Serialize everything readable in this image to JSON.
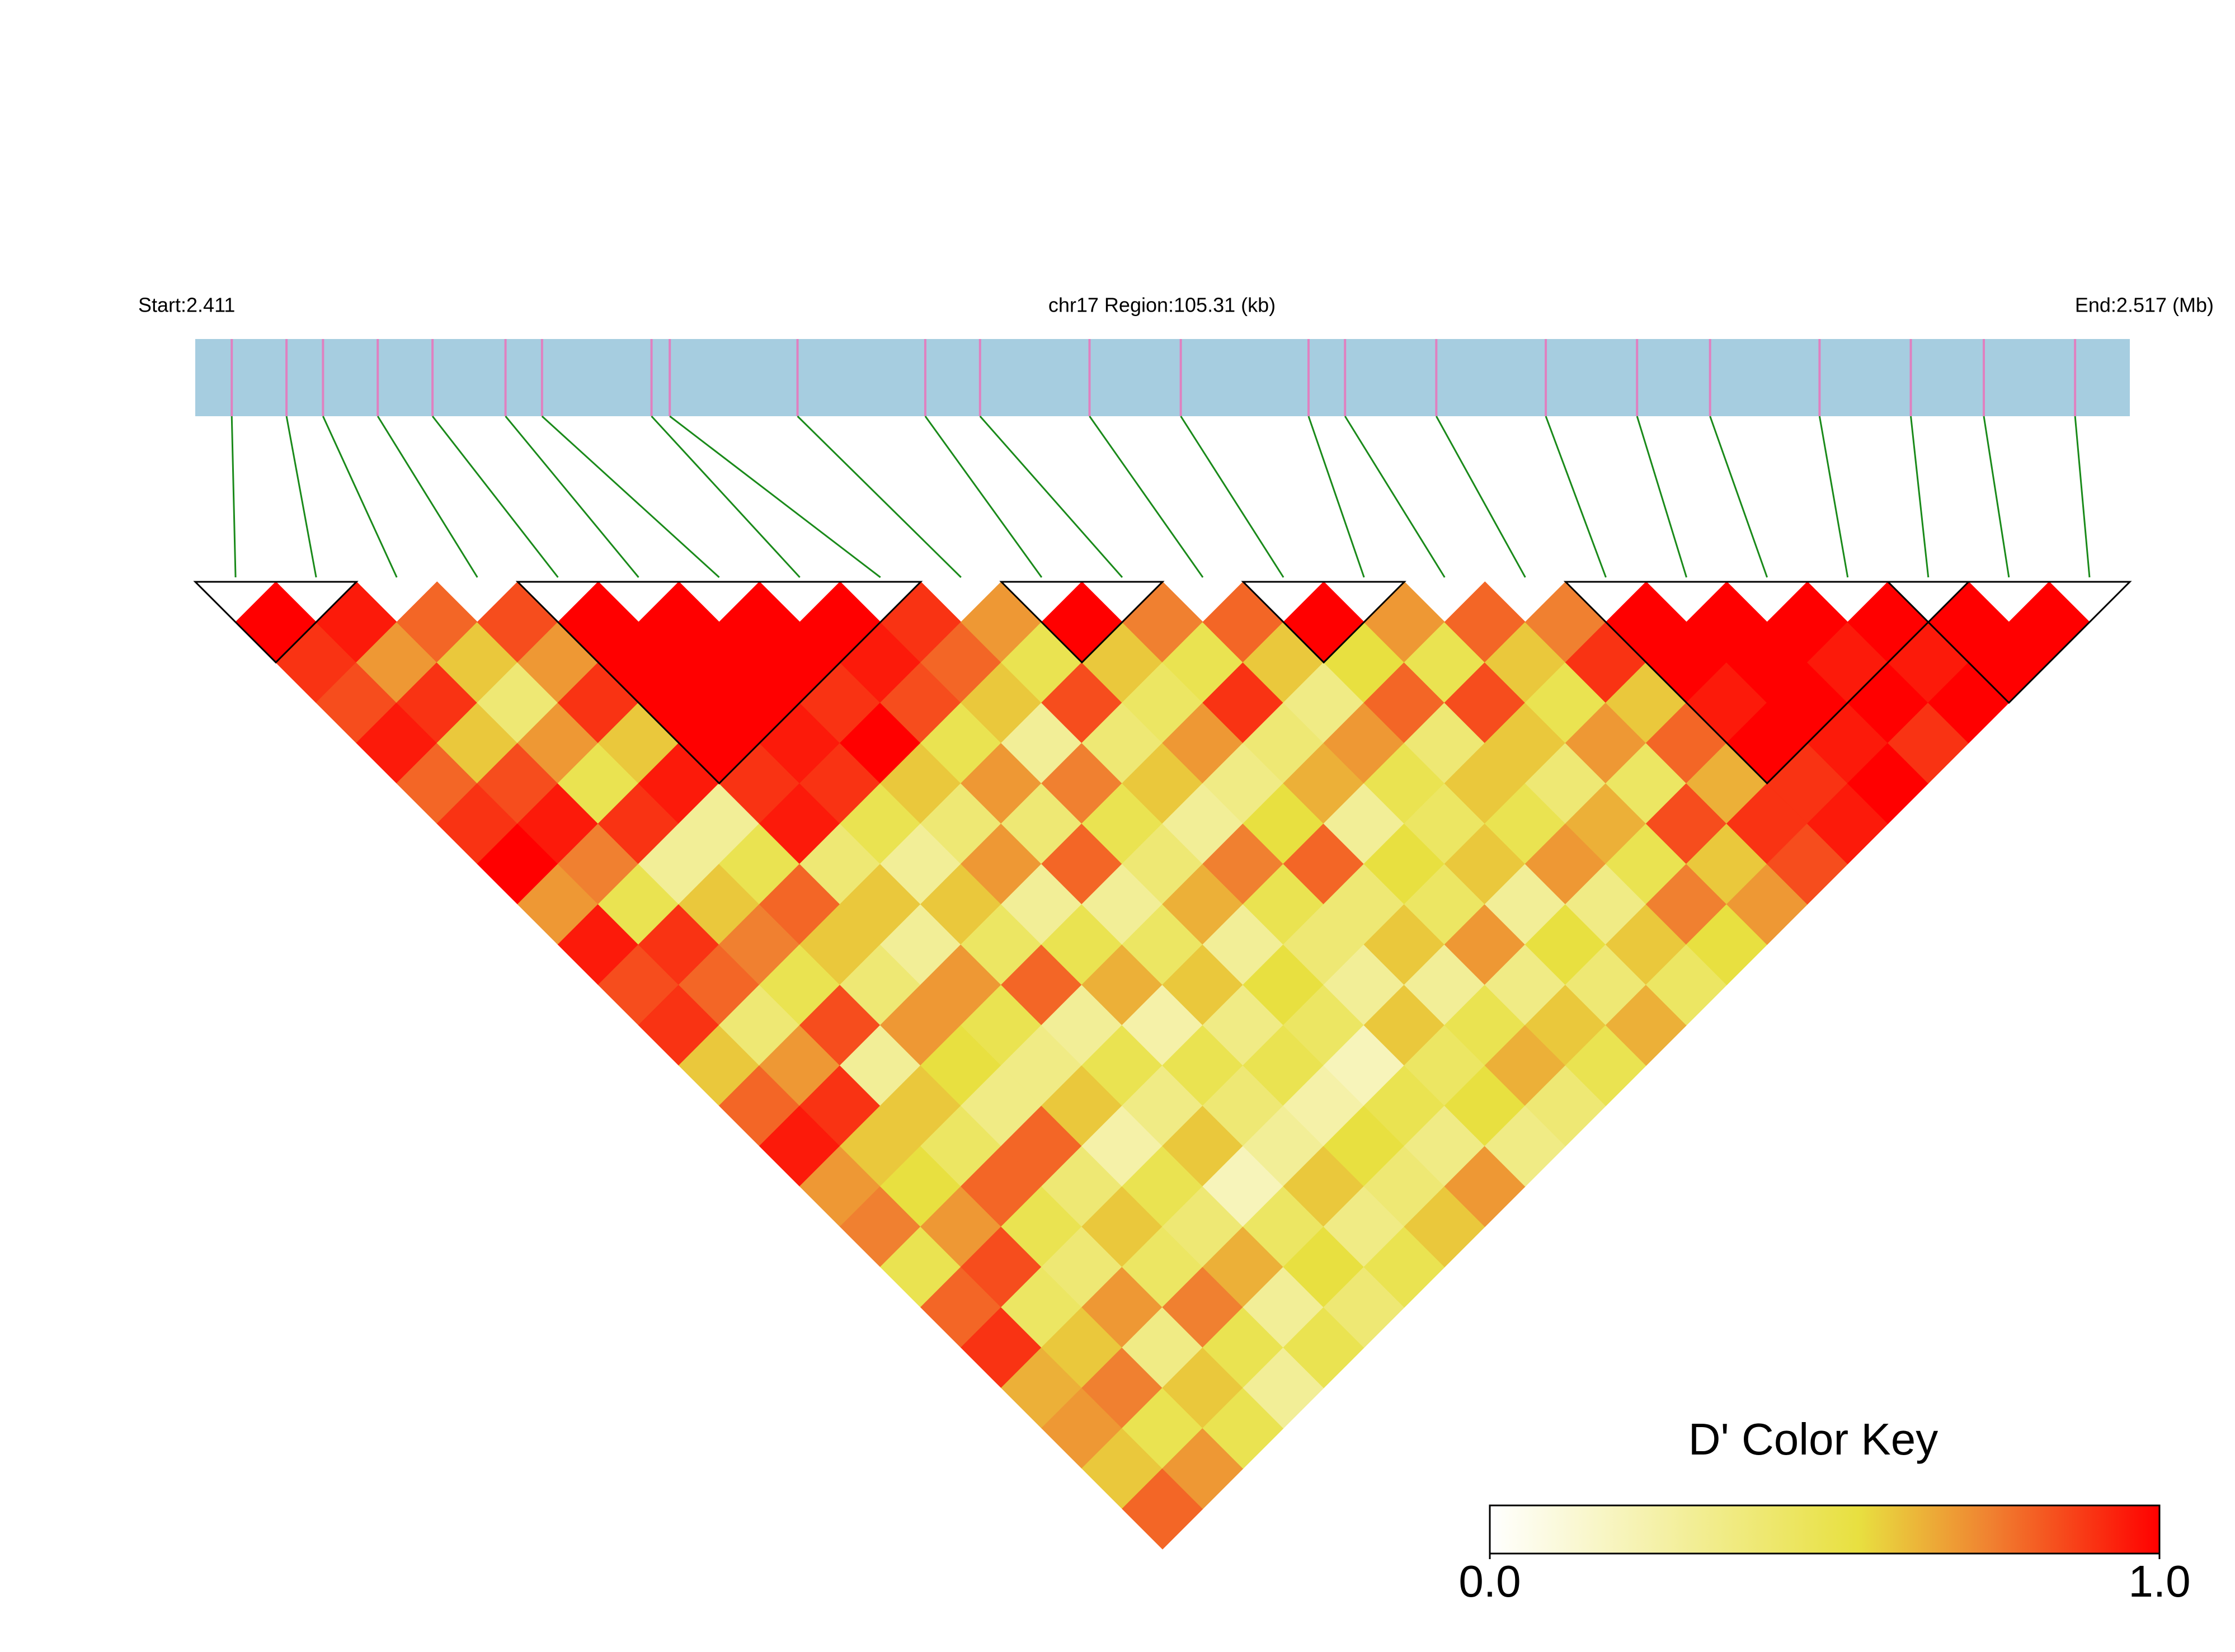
{
  "chart_data": {
    "type": "ld_heatmap",
    "start_label": "Start:2.411",
    "region_label": "chr17 Region:105.31 (kb)",
    "end_label": "End:2.517 (Mb)",
    "key_title": "D' Color Key",
    "xlim": [
      2.411,
      2.517
    ],
    "snp_positions": [
      2.413,
      2.416,
      2.418,
      2.421,
      2.424,
      2.428,
      2.43,
      2.436,
      2.437,
      2.444,
      2.451,
      2.454,
      2.46,
      2.465,
      2.472,
      2.474,
      2.479,
      2.485,
      2.49,
      2.494,
      2.5,
      2.505,
      2.509,
      2.514
    ],
    "ld": [
      [
        1,
        0.9,
        0.85,
        0.95,
        0.8,
        0.9,
        1,
        0.7,
        0.95,
        0.85,
        0.9,
        0.6,
        0.8,
        0.95,
        0.7,
        0.75,
        0.5,
        0.8,
        0.9,
        0.65,
        0.7,
        0.6,
        0.8
      ],
      [
        0.95,
        0.7,
        0.9,
        0.6,
        0.85,
        0.95,
        0.75,
        0.5,
        0.9,
        0.8,
        0.4,
        0.7,
        0.9,
        0.6,
        0.55,
        0.7,
        0.85,
        0.45,
        0.6,
        0.75,
        0.5,
        0.7
      ],
      [
        0.8,
        0.6,
        0.4,
        0.7,
        0.5,
        0.9,
        0.3,
        0.6,
        0.75,
        0.5,
        0.85,
        0.3,
        0.6,
        0.45,
        0.8,
        0.5,
        0.4,
        0.7,
        0.35,
        0.6,
        0.5
      ],
      [
        0.85,
        0.7,
        0.9,
        0.6,
        0.95,
        0.3,
        0.5,
        0.8,
        0.6,
        0.4,
        0.7,
        0.55,
        0.35,
        0.8,
        0.4,
        0.6,
        0.45,
        0.75,
        0.5,
        0.3
      ],
      [
        1,
        1,
        1,
        1,
        0.9,
        0.95,
        0.4,
        0.6,
        0.3,
        0.7,
        0.5,
        0.35,
        0.6,
        0.25,
        0.5,
        0.4,
        0.65,
        0.3,
        0.5
      ],
      [
        1,
        1,
        1,
        0.95,
        0.9,
        0.5,
        0.3,
        0.6,
        0.45,
        0.8,
        0.3,
        0.5,
        0.35,
        0.6,
        0.2,
        0.45,
        0.55,
        0.4
      ],
      [
        1,
        1,
        0.9,
        1,
        0.6,
        0.4,
        0.7,
        0.3,
        0.5,
        0.65,
        0.25,
        0.5,
        0.4,
        0.3,
        0.6,
        0.35,
        0.5
      ],
      [
        1,
        0.95,
        0.85,
        0.5,
        0.7,
        0.4,
        0.8,
        0.3,
        0.45,
        0.6,
        0.35,
        0.5,
        0.25,
        0.55,
        0.4,
        0.6
      ],
      [
        0.9,
        0.8,
        0.6,
        0.3,
        0.75,
        0.5,
        0.4,
        0.65,
        0.3,
        0.55,
        0.45,
        0.2,
        0.5,
        0.35,
        0.7
      ],
      [
        0.7,
        0.5,
        0.85,
        0.4,
        0.6,
        0.3,
        0.75,
        0.5,
        0.4,
        0.3,
        0.6,
        0.45,
        0.55,
        0.35
      ],
      [
        1,
        0.6,
        0.45,
        0.7,
        0.35,
        0.55,
        0.8,
        0.4,
        0.6,
        0.3,
        0.5,
        0.65,
        0.4
      ],
      [
        0.75,
        0.5,
        0.9,
        0.4,
        0.65,
        0.3,
        0.55,
        0.45,
        0.7,
        0.35,
        0.6,
        0.5
      ],
      [
        0.8,
        0.6,
        0.35,
        0.7,
        0.5,
        0.45,
        0.6,
        0.3,
        0.55,
        0.4,
        0.65
      ],
      [
        1,
        0.55,
        0.8,
        0.4,
        0.6,
        0.5,
        0.7,
        0.35,
        0.6,
        0.45
      ],
      [
        0.7,
        0.5,
        0.85,
        0.6,
        0.4,
        0.65,
        0.5,
        0.75,
        0.55
      ],
      [
        0.8,
        0.6,
        0.5,
        0.7,
        0.45,
        0.85,
        0.6,
        0.7
      ],
      [
        0.75,
        0.9,
        0.6,
        0.8,
        0.65,
        0.9,
        0.85
      ],
      [
        1,
        1,
        0.95,
        1,
        0.9,
        0.95
      ],
      [
        1,
        1,
        1,
        0.95,
        1
      ],
      [
        1,
        0.95,
        1,
        0.9
      ],
      [
        1,
        0.95,
        1
      ],
      [
        1,
        1
      ],
      [
        1
      ]
    ],
    "blocks": [
      [
        0,
        1
      ],
      [
        4,
        8
      ],
      [
        10,
        11
      ],
      [
        13,
        14
      ],
      [
        17,
        21
      ],
      [
        21,
        23
      ]
    ],
    "colorscale": [
      [
        0,
        "#ffffff"
      ],
      [
        0.55,
        "#e8e040"
      ],
      [
        0.75,
        "#f08030"
      ],
      [
        1,
        "#ff0000"
      ]
    ],
    "key_xlim": [
      0,
      1
    ],
    "key_ticks": [
      {
        "value": 0,
        "label": "0.0"
      },
      {
        "value": 1,
        "label": "1.0"
      }
    ],
    "bar_color": "#a6cde0",
    "snp_color": "#e080c0",
    "link_color": "#1a8a1a"
  }
}
